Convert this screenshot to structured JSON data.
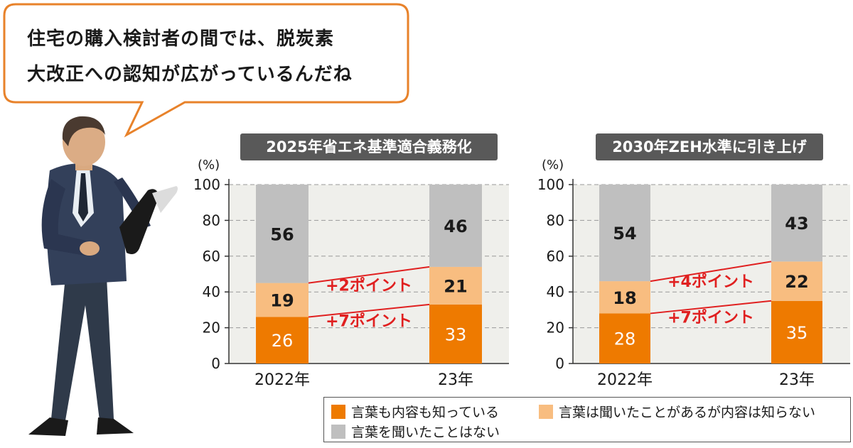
{
  "speech_bubble": {
    "line1": "住宅の購入検討者の間では、脱炭素",
    "line2": "大改正への認知が広がっているんだね"
  },
  "colors": {
    "know_content": "#ee7a00",
    "heard_only": "#f8bd80",
    "never_heard": "#bfbfbf",
    "plot_bg": "#efefeb",
    "change_line": "#e02020",
    "bubble_border": "#e8822a",
    "title_bg": "#595959"
  },
  "legend": [
    {
      "label": "言葉も内容も知っている",
      "color": "#ee7a00"
    },
    {
      "label": "言葉は聞いたことがあるが内容は知らない",
      "color": "#f8bd80"
    },
    {
      "label": "言葉を聞いたことはない",
      "color": "#bfbfbf"
    }
  ],
  "chart_data": [
    {
      "type": "bar",
      "stacked": true,
      "title": "2025年省エネ基準適合義務化",
      "ylabel": "(%)",
      "ylim": [
        0,
        100
      ],
      "yticks": [
        "0",
        "20",
        "40",
        "60",
        "80",
        "100"
      ],
      "grid": true,
      "categories": [
        "2022年",
        "23年"
      ],
      "series": [
        {
          "name": "言葉も内容も知っている",
          "values": [
            26,
            33
          ]
        },
        {
          "name": "言葉は聞いたことがあるが内容は知らない",
          "values": [
            19,
            21
          ]
        },
        {
          "name": "言葉を聞いたことはない",
          "values": [
            56,
            46
          ]
        }
      ],
      "annotations": [
        "+2ポイント",
        "+7ポイント"
      ]
    },
    {
      "type": "bar",
      "stacked": true,
      "title": "2030年ZEH水準に引き上げ",
      "ylabel": "(%)",
      "ylim": [
        0,
        100
      ],
      "yticks": [
        "0",
        "20",
        "40",
        "60",
        "80",
        "100"
      ],
      "grid": true,
      "categories": [
        "2022年",
        "23年"
      ],
      "series": [
        {
          "name": "言葉も内容も知っている",
          "values": [
            28,
            35
          ]
        },
        {
          "name": "言葉は聞いたことがあるが内容は知らない",
          "values": [
            18,
            22
          ]
        },
        {
          "name": "言葉を聞いたことはない",
          "values": [
            54,
            43
          ]
        }
      ],
      "annotations": [
        "+4ポイント",
        "+7ポイント"
      ]
    }
  ]
}
